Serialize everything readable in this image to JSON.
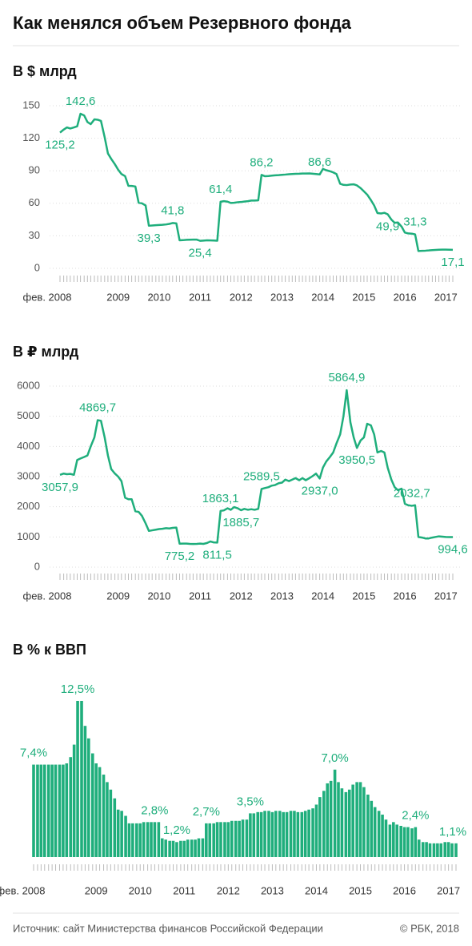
{
  "header": {
    "title": "Как менялся объем Резервного фонда"
  },
  "footer": {
    "source": "Источник: сайт Министерства финансов Российской Федерации",
    "copyright": "© РБК, 2018"
  },
  "chart_data": [
    {
      "type": "line",
      "title": "В $ млрд",
      "color": "#1fae7c",
      "grid": true,
      "ylim": [
        0,
        150
      ],
      "yticks": [
        0,
        30,
        60,
        90,
        120,
        150
      ],
      "xlim": [
        2008.08,
        2017.67
      ],
      "xticks": [
        {
          "value": 2008.08,
          "label": "фев. 2008"
        },
        2009,
        2010,
        2011,
        2012,
        2013,
        2014,
        2015,
        2016,
        2017
      ],
      "x": [
        2008.08,
        2008.17,
        2008.25,
        2008.33,
        2008.42,
        2008.5,
        2008.58,
        2008.67,
        2008.75,
        2008.83,
        2008.92,
        2009,
        2009.08,
        2009.17,
        2009.25,
        2009.33,
        2009.42,
        2009.5,
        2009.58,
        2009.67,
        2009.75,
        2009.83,
        2009.92,
        2010,
        2010.08,
        2010.17,
        2010.25,
        2010.33,
        2010.42,
        2010.5,
        2010.58,
        2010.67,
        2010.75,
        2010.83,
        2010.92,
        2011,
        2011.08,
        2011.17,
        2011.25,
        2011.33,
        2011.42,
        2011.5,
        2011.58,
        2011.67,
        2011.75,
        2011.83,
        2011.92,
        2012,
        2012.08,
        2012.17,
        2012.25,
        2012.33,
        2012.42,
        2012.5,
        2012.58,
        2012.67,
        2012.75,
        2012.83,
        2012.92,
        2013,
        2013.08,
        2013.17,
        2013.25,
        2013.33,
        2013.42,
        2013.5,
        2013.58,
        2013.67,
        2013.75,
        2013.83,
        2013.92,
        2014,
        2014.08,
        2014.17,
        2014.25,
        2014.33,
        2014.42,
        2014.5,
        2014.58,
        2014.67,
        2014.75,
        2014.83,
        2014.92,
        2015,
        2015.08,
        2015.17,
        2015.25,
        2015.33,
        2015.42,
        2015.5,
        2015.58,
        2015.67,
        2015.75,
        2015.83,
        2015.92,
        2016,
        2016.08,
        2016.17,
        2016.25,
        2016.33,
        2016.42,
        2016.5,
        2016.58,
        2016.67,
        2016.75,
        2016.83,
        2016.92,
        2017,
        2017.08,
        2017.17,
        2017.25,
        2017.33,
        2017.42,
        2017.5,
        2017.58,
        2017.67
      ],
      "values": [
        125.2,
        128,
        130,
        129,
        130,
        131,
        142.6,
        141,
        135,
        133,
        137.4,
        137.1,
        136,
        121,
        106,
        101,
        96,
        91,
        87,
        85,
        76.1,
        76,
        75.5,
        60.5,
        60,
        58,
        39.3,
        39.5,
        39.8,
        40,
        40.2,
        40.5,
        41,
        41.8,
        41.5,
        25.9,
        26,
        26.3,
        26.4,
        26.5,
        26.5,
        25.4,
        25.6,
        25.9,
        25.8,
        25.7,
        25.5,
        61.4,
        62,
        61.5,
        60.3,
        60.5,
        61,
        61.2,
        61.6,
        62,
        62.5,
        62.5,
        62.7,
        86.2,
        85,
        85.2,
        85.5,
        85.8,
        86,
        86.3,
        86.5,
        86.8,
        87,
        87.2,
        87.3,
        87.5,
        87.5,
        87.6,
        87.3,
        87,
        86.6,
        91.7,
        90.5,
        89.6,
        88.5,
        87,
        78,
        77,
        76.8,
        77.3,
        77.5,
        76.5,
        74,
        71,
        68,
        63,
        58,
        51,
        50.6,
        51.2,
        49.9,
        45,
        42,
        42.3,
        38.5,
        33,
        32.2,
        32,
        31.3,
        16,
        16.2,
        16.3,
        16.5,
        16.8,
        17,
        17.2,
        17.3,
        17.3,
        17.2,
        17.1
      ],
      "value_labels": {
        "0": "125,2",
        "6": "142,6",
        "26": "39,3",
        "33": "41,8",
        "41": "25,4",
        "47": "61,4",
        "59": "86,2",
        "76": "86,6",
        "96": "49,9",
        "104": "31,3",
        "115": "17,1"
      }
    },
    {
      "type": "line",
      "title": "В ₽ млрд",
      "color": "#1fae7c",
      "grid": true,
      "ylim": [
        0,
        6000
      ],
      "yticks": [
        0,
        1000,
        2000,
        3000,
        4000,
        5000,
        6000
      ],
      "xlim": [
        2008.08,
        2017.67
      ],
      "xticks": [
        {
          "value": 2008.08,
          "label": "фев. 2008"
        },
        2009,
        2010,
        2011,
        2012,
        2013,
        2014,
        2015,
        2016,
        2017
      ],
      "x": [
        2008.08,
        2008.17,
        2008.25,
        2008.33,
        2008.42,
        2008.5,
        2008.58,
        2008.67,
        2008.75,
        2008.83,
        2008.92,
        2009,
        2009.08,
        2009.17,
        2009.25,
        2009.33,
        2009.42,
        2009.5,
        2009.58,
        2009.67,
        2009.75,
        2009.83,
        2009.92,
        2010,
        2010.08,
        2010.17,
        2010.25,
        2010.33,
        2010.42,
        2010.5,
        2010.58,
        2010.67,
        2010.75,
        2010.83,
        2010.92,
        2011,
        2011.08,
        2011.17,
        2011.25,
        2011.33,
        2011.42,
        2011.5,
        2011.58,
        2011.67,
        2011.75,
        2011.83,
        2011.92,
        2012,
        2012.08,
        2012.17,
        2012.25,
        2012.33,
        2012.42,
        2012.5,
        2012.58,
        2012.67,
        2012.75,
        2012.83,
        2012.92,
        2013,
        2013.08,
        2013.17,
        2013.25,
        2013.33,
        2013.42,
        2013.5,
        2013.58,
        2013.67,
        2013.75,
        2013.83,
        2013.92,
        2014,
        2014.08,
        2014.17,
        2014.25,
        2014.33,
        2014.42,
        2014.5,
        2014.58,
        2014.67,
        2014.75,
        2014.83,
        2014.92,
        2015,
        2015.08,
        2015.17,
        2015.25,
        2015.33,
        2015.42,
        2015.5,
        2015.58,
        2015.67,
        2015.75,
        2015.83,
        2015.92,
        2016,
        2016.08,
        2016.17,
        2016.25,
        2016.33,
        2016.42,
        2016.5,
        2016.58,
        2016.67,
        2016.75,
        2016.83,
        2016.92,
        2017,
        2017.08,
        2017.17,
        2017.25,
        2017.33,
        2017.42,
        2017.5,
        2017.58,
        2017.67
      ],
      "values": [
        3057.9,
        3100,
        3080,
        3090,
        3060,
        3550,
        3600,
        3650,
        3700,
        4000,
        4300,
        4869.7,
        4850,
        4300,
        3700,
        3250,
        3100,
        3000,
        2850,
        2300,
        2250,
        2250,
        1850,
        1830,
        1700,
        1450,
        1200,
        1220,
        1240,
        1260,
        1270,
        1290,
        1280,
        1300,
        1310,
        775.2,
        780,
        780,
        770,
        765,
        770,
        780,
        770,
        800,
        850,
        820,
        811.5,
        1863.1,
        1880,
        1950,
        1900,
        1990,
        1950,
        1885.7,
        1930,
        1900,
        1920,
        1900,
        1930,
        2589.5,
        2620,
        2650,
        2700,
        2720,
        2780,
        2800,
        2900,
        2850,
        2900,
        2950,
        2880,
        2950,
        2880,
        2950,
        3020,
        3100,
        2937,
        3300,
        3500,
        3650,
        3800,
        4100,
        4400,
        5000,
        5864.9,
        4800,
        4300,
        3950.5,
        4200,
        4300,
        4750,
        4700,
        4400,
        3800,
        3850,
        3800,
        3300,
        2900,
        2650,
        2550,
        2600,
        2100,
        2050,
        2032.7,
        2050,
        1000,
        980,
        950,
        950,
        980,
        1000,
        1020,
        1010,
        1000,
        995,
        994.6
      ],
      "value_labels": {
        "0": "3057,9",
        "11": "4869,7",
        "35": "775,2",
        "46": "811,5",
        "47": "1863,1",
        "53": "1885,7",
        "59": "2589,5",
        "76": "2937,0",
        "84": "5864,9",
        "87": "3950,5",
        "103": "2032,7",
        "115": "994,6"
      }
    },
    {
      "type": "bar",
      "title": "В % к ВВП",
      "color": "#1fae7c",
      "xlim": [
        2008.08,
        2017.67
      ],
      "xticks": [
        {
          "value": 2008.08,
          "label": "фев. 2008"
        },
        2009,
        2010,
        2011,
        2012,
        2013,
        2014,
        2015,
        2016,
        2017
      ],
      "x": [
        2008.08,
        2008.17,
        2008.25,
        2008.33,
        2008.42,
        2008.5,
        2008.58,
        2008.67,
        2008.75,
        2008.83,
        2008.92,
        2009,
        2009.08,
        2009.17,
        2009.25,
        2009.33,
        2009.42,
        2009.5,
        2009.58,
        2009.67,
        2009.75,
        2009.83,
        2009.92,
        2010,
        2010.08,
        2010.17,
        2010.25,
        2010.33,
        2010.42,
        2010.5,
        2010.58,
        2010.67,
        2010.75,
        2010.83,
        2010.92,
        2011,
        2011.08,
        2011.17,
        2011.25,
        2011.33,
        2011.42,
        2011.5,
        2011.58,
        2011.67,
        2011.75,
        2011.83,
        2011.92,
        2012,
        2012.08,
        2012.17,
        2012.25,
        2012.33,
        2012.42,
        2012.5,
        2012.58,
        2012.67,
        2012.75,
        2012.83,
        2012.92,
        2013,
        2013.08,
        2013.17,
        2013.25,
        2013.33,
        2013.42,
        2013.5,
        2013.58,
        2013.67,
        2013.75,
        2013.83,
        2013.92,
        2014,
        2014.08,
        2014.17,
        2014.25,
        2014.33,
        2014.42,
        2014.5,
        2014.58,
        2014.67,
        2014.75,
        2014.83,
        2014.92,
        2015,
        2015.08,
        2015.17,
        2015.25,
        2015.33,
        2015.42,
        2015.5,
        2015.58,
        2015.67,
        2015.75,
        2015.83,
        2015.92,
        2016,
        2016.08,
        2016.17,
        2016.25,
        2016.33,
        2016.42,
        2016.5,
        2016.58,
        2016.67,
        2016.75,
        2016.83,
        2016.92,
        2017,
        2017.08,
        2017.17,
        2017.25,
        2017.33,
        2017.42,
        2017.5,
        2017.58,
        2017.67
      ],
      "values": [
        7.4,
        7.4,
        7.4,
        7.4,
        7.4,
        7.4,
        7.4,
        7.4,
        7.4,
        7.5,
        8.0,
        9.0,
        12.5,
        12.5,
        10.5,
        9.5,
        8.3,
        7.5,
        7.2,
        6.6,
        6.0,
        5.4,
        4.7,
        3.8,
        3.7,
        3.3,
        2.7,
        2.7,
        2.7,
        2.7,
        2.8,
        2.8,
        2.8,
        2.8,
        2.8,
        1.5,
        1.4,
        1.3,
        1.3,
        1.2,
        1.3,
        1.3,
        1.4,
        1.4,
        1.4,
        1.5,
        1.5,
        2.7,
        2.7,
        2.7,
        2.8,
        2.8,
        2.8,
        2.8,
        2.9,
        2.9,
        2.9,
        3.0,
        3.0,
        3.5,
        3.5,
        3.6,
        3.6,
        3.7,
        3.7,
        3.6,
        3.7,
        3.7,
        3.6,
        3.6,
        3.7,
        3.7,
        3.6,
        3.6,
        3.7,
        3.8,
        3.9,
        4.2,
        4.8,
        5.3,
        5.9,
        6.1,
        7.0,
        6.0,
        5.5,
        5.2,
        5.4,
        5.8,
        6.0,
        6.0,
        5.6,
        5.0,
        4.5,
        4.0,
        3.7,
        3.4,
        3.0,
        2.6,
        2.8,
        2.6,
        2.5,
        2.4,
        2.4,
        2.3,
        2.4,
        1.4,
        1.2,
        1.2,
        1.1,
        1.1,
        1.1,
        1.1,
        1.2,
        1.2,
        1.1,
        1.1
      ],
      "value_labels": {
        "0": "7,4%",
        "12": "12,5%",
        "33": "2,8%",
        "39": "1,2%",
        "47": "2,7%",
        "59": "3,5%",
        "82": "7,0%",
        "104": "2,4%",
        "115": "1,1%"
      }
    }
  ]
}
